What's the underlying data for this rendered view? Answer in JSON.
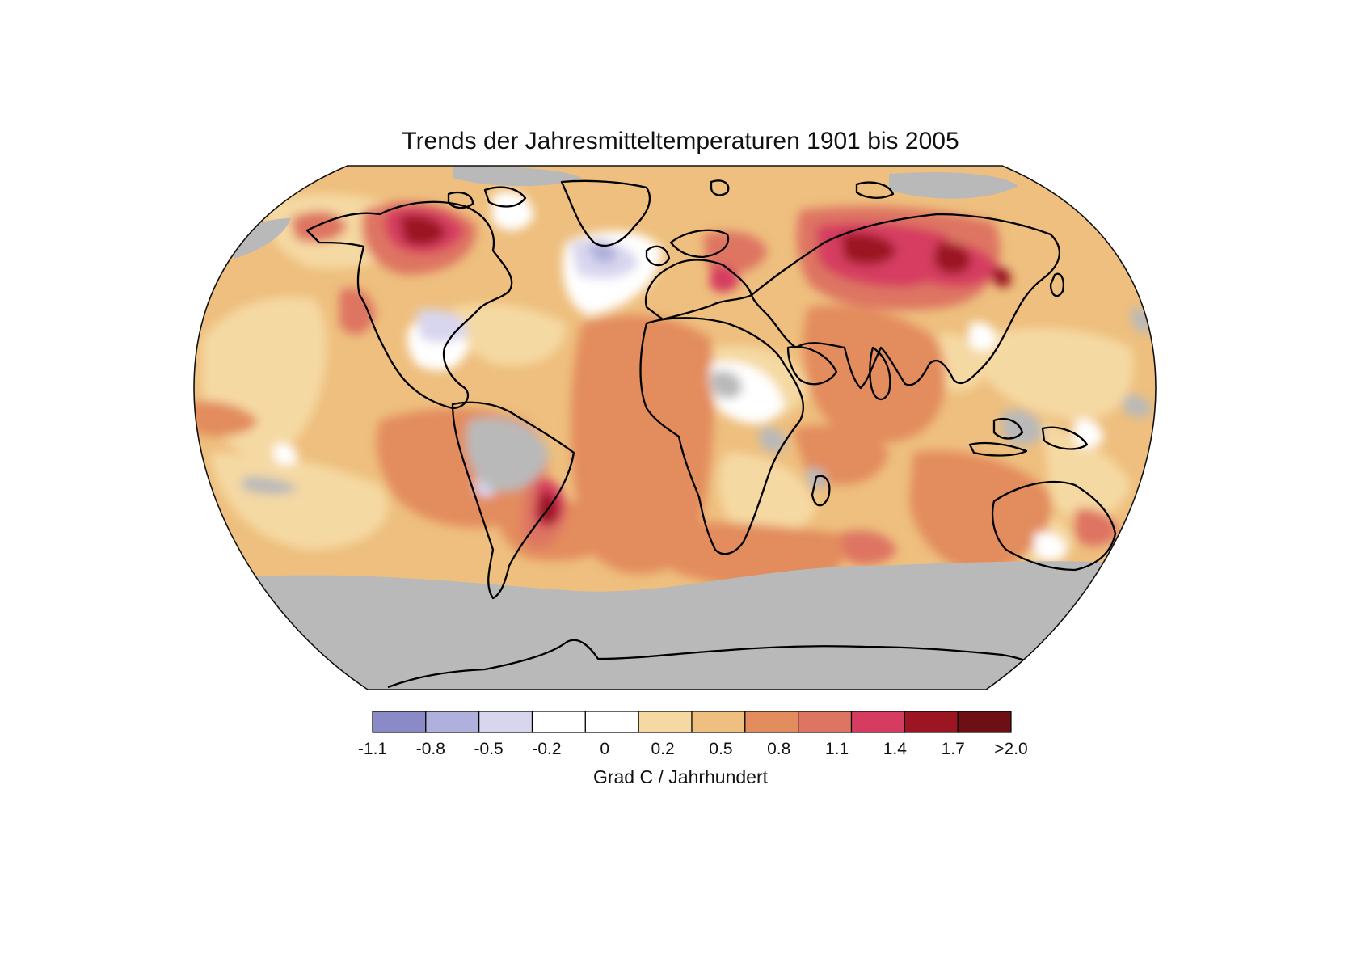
{
  "title": "Trends der Jahresmitteltemperaturen 1901 bis 2005",
  "legend": {
    "unit_label": "Grad C / Jahrhundert",
    "tick_labels": [
      "-1.1",
      "-0.8",
      "-0.5",
      "-0.2",
      "0",
      "0.2",
      "0.5",
      "0.8",
      "1.1",
      "1.4",
      "1.7",
      ">2.0"
    ],
    "bins": [
      {
        "color": "#8a8ac8"
      },
      {
        "color": "#b0b0dc"
      },
      {
        "color": "#d8d6ee"
      },
      {
        "color": "#ffffff"
      },
      {
        "color": "#ffffff"
      },
      {
        "color": "#f5d9a3"
      },
      {
        "color": "#eebf7e"
      },
      {
        "color": "#e38c5d"
      },
      {
        "color": "#de7462"
      },
      {
        "color": "#d63c60"
      },
      {
        "color": "#9b1622"
      },
      {
        "color": "#6e0f16"
      }
    ]
  },
  "colors": {
    "no_data": "#b9b9b9",
    "coastline": "#000000"
  }
}
